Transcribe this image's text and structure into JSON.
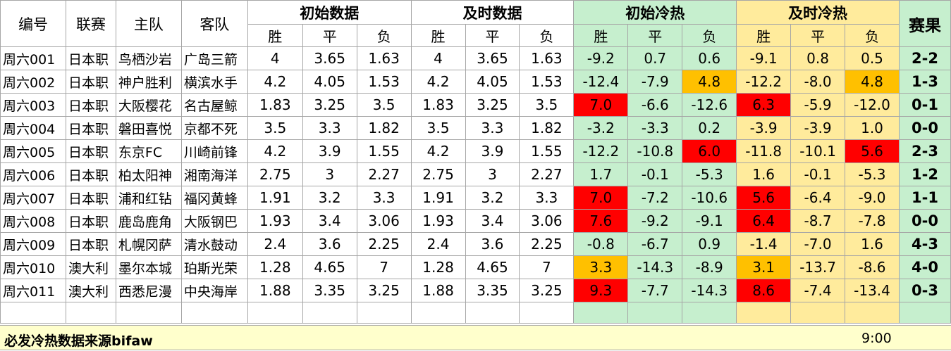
{
  "header": {
    "id": "编号",
    "league": "联赛",
    "home": "主队",
    "away": "客队",
    "initial_odds": "初始数据",
    "live_odds": "及时数据",
    "initial_heat": "初始冷热",
    "live_heat": "及时冷热",
    "result": "赛果",
    "win": "胜",
    "draw": "平",
    "loss": "负"
  },
  "rows": [
    {
      "id": "周六001",
      "league": "日本职",
      "home": "鸟栖沙岩",
      "away": "广岛三箭",
      "io": [
        "4",
        "3.65",
        "1.63"
      ],
      "lo": [
        "4",
        "3.65",
        "1.63"
      ],
      "ih": [
        "-9.2",
        "0.7",
        "0.6"
      ],
      "lh": [
        "-9.1",
        "0.8",
        "0.5"
      ],
      "ihc": [
        "",
        "",
        ""
      ],
      "lhc": [
        "",
        "",
        ""
      ],
      "result": "2-2"
    },
    {
      "id": "周六002",
      "league": "日本职",
      "home": "神户胜利",
      "away": "横滨水手",
      "io": [
        "4.2",
        "4.05",
        "1.53"
      ],
      "lo": [
        "4.2",
        "4.05",
        "1.53"
      ],
      "ih": [
        "-12.4",
        "-7.9",
        "4.8"
      ],
      "lh": [
        "-12.2",
        "-8.0",
        "4.8"
      ],
      "ihc": [
        "",
        "",
        "orange"
      ],
      "lhc": [
        "",
        "",
        "orange"
      ],
      "result": "1-3"
    },
    {
      "id": "周六003",
      "league": "日本职",
      "home": "大阪樱花",
      "away": "名古屋鲸",
      "io": [
        "1.83",
        "3.25",
        "3.5"
      ],
      "lo": [
        "1.83",
        "3.25",
        "3.5"
      ],
      "ih": [
        "7.0",
        "-6.6",
        "-12.6"
      ],
      "lh": [
        "6.3",
        "-5.9",
        "-12.0"
      ],
      "ihc": [
        "red",
        "",
        ""
      ],
      "lhc": [
        "red",
        "",
        ""
      ],
      "result": "0-1"
    },
    {
      "id": "周六004",
      "league": "日本职",
      "home": "磐田喜悦",
      "away": "京都不死",
      "io": [
        "3.5",
        "3.3",
        "1.82"
      ],
      "lo": [
        "3.5",
        "3.3",
        "1.82"
      ],
      "ih": [
        "-3.2",
        "-3.3",
        "0.2"
      ],
      "lh": [
        "-3.9",
        "-3.9",
        "1.0"
      ],
      "ihc": [
        "",
        "",
        ""
      ],
      "lhc": [
        "",
        "",
        ""
      ],
      "result": "0-0"
    },
    {
      "id": "周六005",
      "league": "日本职",
      "home": "东京FC",
      "away": "川崎前锋",
      "io": [
        "4.2",
        "3.9",
        "1.55"
      ],
      "lo": [
        "4.2",
        "3.9",
        "1.55"
      ],
      "ih": [
        "-12.2",
        "-10.8",
        "6.0"
      ],
      "lh": [
        "-11.8",
        "-10.1",
        "5.6"
      ],
      "ihc": [
        "",
        "",
        "red"
      ],
      "lhc": [
        "",
        "",
        "red"
      ],
      "result": "2-3"
    },
    {
      "id": "周六006",
      "league": "日本职",
      "home": "柏太阳神",
      "away": "湘南海洋",
      "io": [
        "2.75",
        "3",
        "2.27"
      ],
      "lo": [
        "2.75",
        "3",
        "2.27"
      ],
      "ih": [
        "1.7",
        "-0.1",
        "-5.3"
      ],
      "lh": [
        "1.6",
        "-0.1",
        "-5.3"
      ],
      "ihc": [
        "",
        "",
        ""
      ],
      "lhc": [
        "",
        "",
        ""
      ],
      "result": "1-2"
    },
    {
      "id": "周六007",
      "league": "日本职",
      "home": "浦和红钻",
      "away": "福冈黄蜂",
      "io": [
        "1.91",
        "3.2",
        "3.3"
      ],
      "lo": [
        "1.91",
        "3.2",
        "3.3"
      ],
      "ih": [
        "7.0",
        "-7.2",
        "-10.6"
      ],
      "lh": [
        "5.6",
        "-6.4",
        "-9.0"
      ],
      "ihc": [
        "red",
        "",
        ""
      ],
      "lhc": [
        "red",
        "",
        ""
      ],
      "result": "1-1"
    },
    {
      "id": "周六008",
      "league": "日本职",
      "home": "鹿岛鹿角",
      "away": "大阪钢巴",
      "io": [
        "1.93",
        "3.4",
        "3.06"
      ],
      "lo": [
        "1.93",
        "3.4",
        "3.06"
      ],
      "ih": [
        "7.6",
        "-9.2",
        "-9.1"
      ],
      "lh": [
        "6.4",
        "-8.7",
        "-7.8"
      ],
      "ihc": [
        "red",
        "",
        ""
      ],
      "lhc": [
        "red",
        "",
        ""
      ],
      "result": "0-0"
    },
    {
      "id": "周六009",
      "league": "日本职",
      "home": "札幌冈萨",
      "away": "清水鼓动",
      "io": [
        "2.4",
        "3.6",
        "2.25"
      ],
      "lo": [
        "2.4",
        "3.6",
        "2.25"
      ],
      "ih": [
        "-0.8",
        "-6.7",
        "0.9"
      ],
      "lh": [
        "-1.4",
        "-7.0",
        "1.6"
      ],
      "ihc": [
        "",
        "",
        ""
      ],
      "lhc": [
        "",
        "",
        ""
      ],
      "result": "4-3"
    },
    {
      "id": "周六010",
      "league": "澳大利",
      "home": "墨尔本城",
      "away": "珀斯光荣",
      "io": [
        "1.28",
        "4.65",
        "7"
      ],
      "lo": [
        "1.28",
        "4.65",
        "7"
      ],
      "ih": [
        "3.3",
        "-14.3",
        "-8.9"
      ],
      "lh": [
        "3.1",
        "-13.7",
        "-8.6"
      ],
      "ihc": [
        "orange",
        "",
        ""
      ],
      "lhc": [
        "orange",
        "",
        ""
      ],
      "result": "4-0"
    },
    {
      "id": "周六011",
      "league": "澳大利",
      "home": "西悉尼漫",
      "away": "中央海岸",
      "io": [
        "1.88",
        "3.35",
        "3.25"
      ],
      "lo": [
        "1.88",
        "3.35",
        "3.25"
      ],
      "ih": [
        "9.3",
        "-7.7",
        "-14.3"
      ],
      "lh": [
        "8.6",
        "-7.4",
        "-13.4"
      ],
      "ihc": [
        "red",
        "",
        ""
      ],
      "lhc": [
        "red",
        "",
        ""
      ],
      "result": "0-3"
    }
  ],
  "footer": {
    "note": "必发冷热数据来源bifaw",
    "time": "9:00"
  }
}
